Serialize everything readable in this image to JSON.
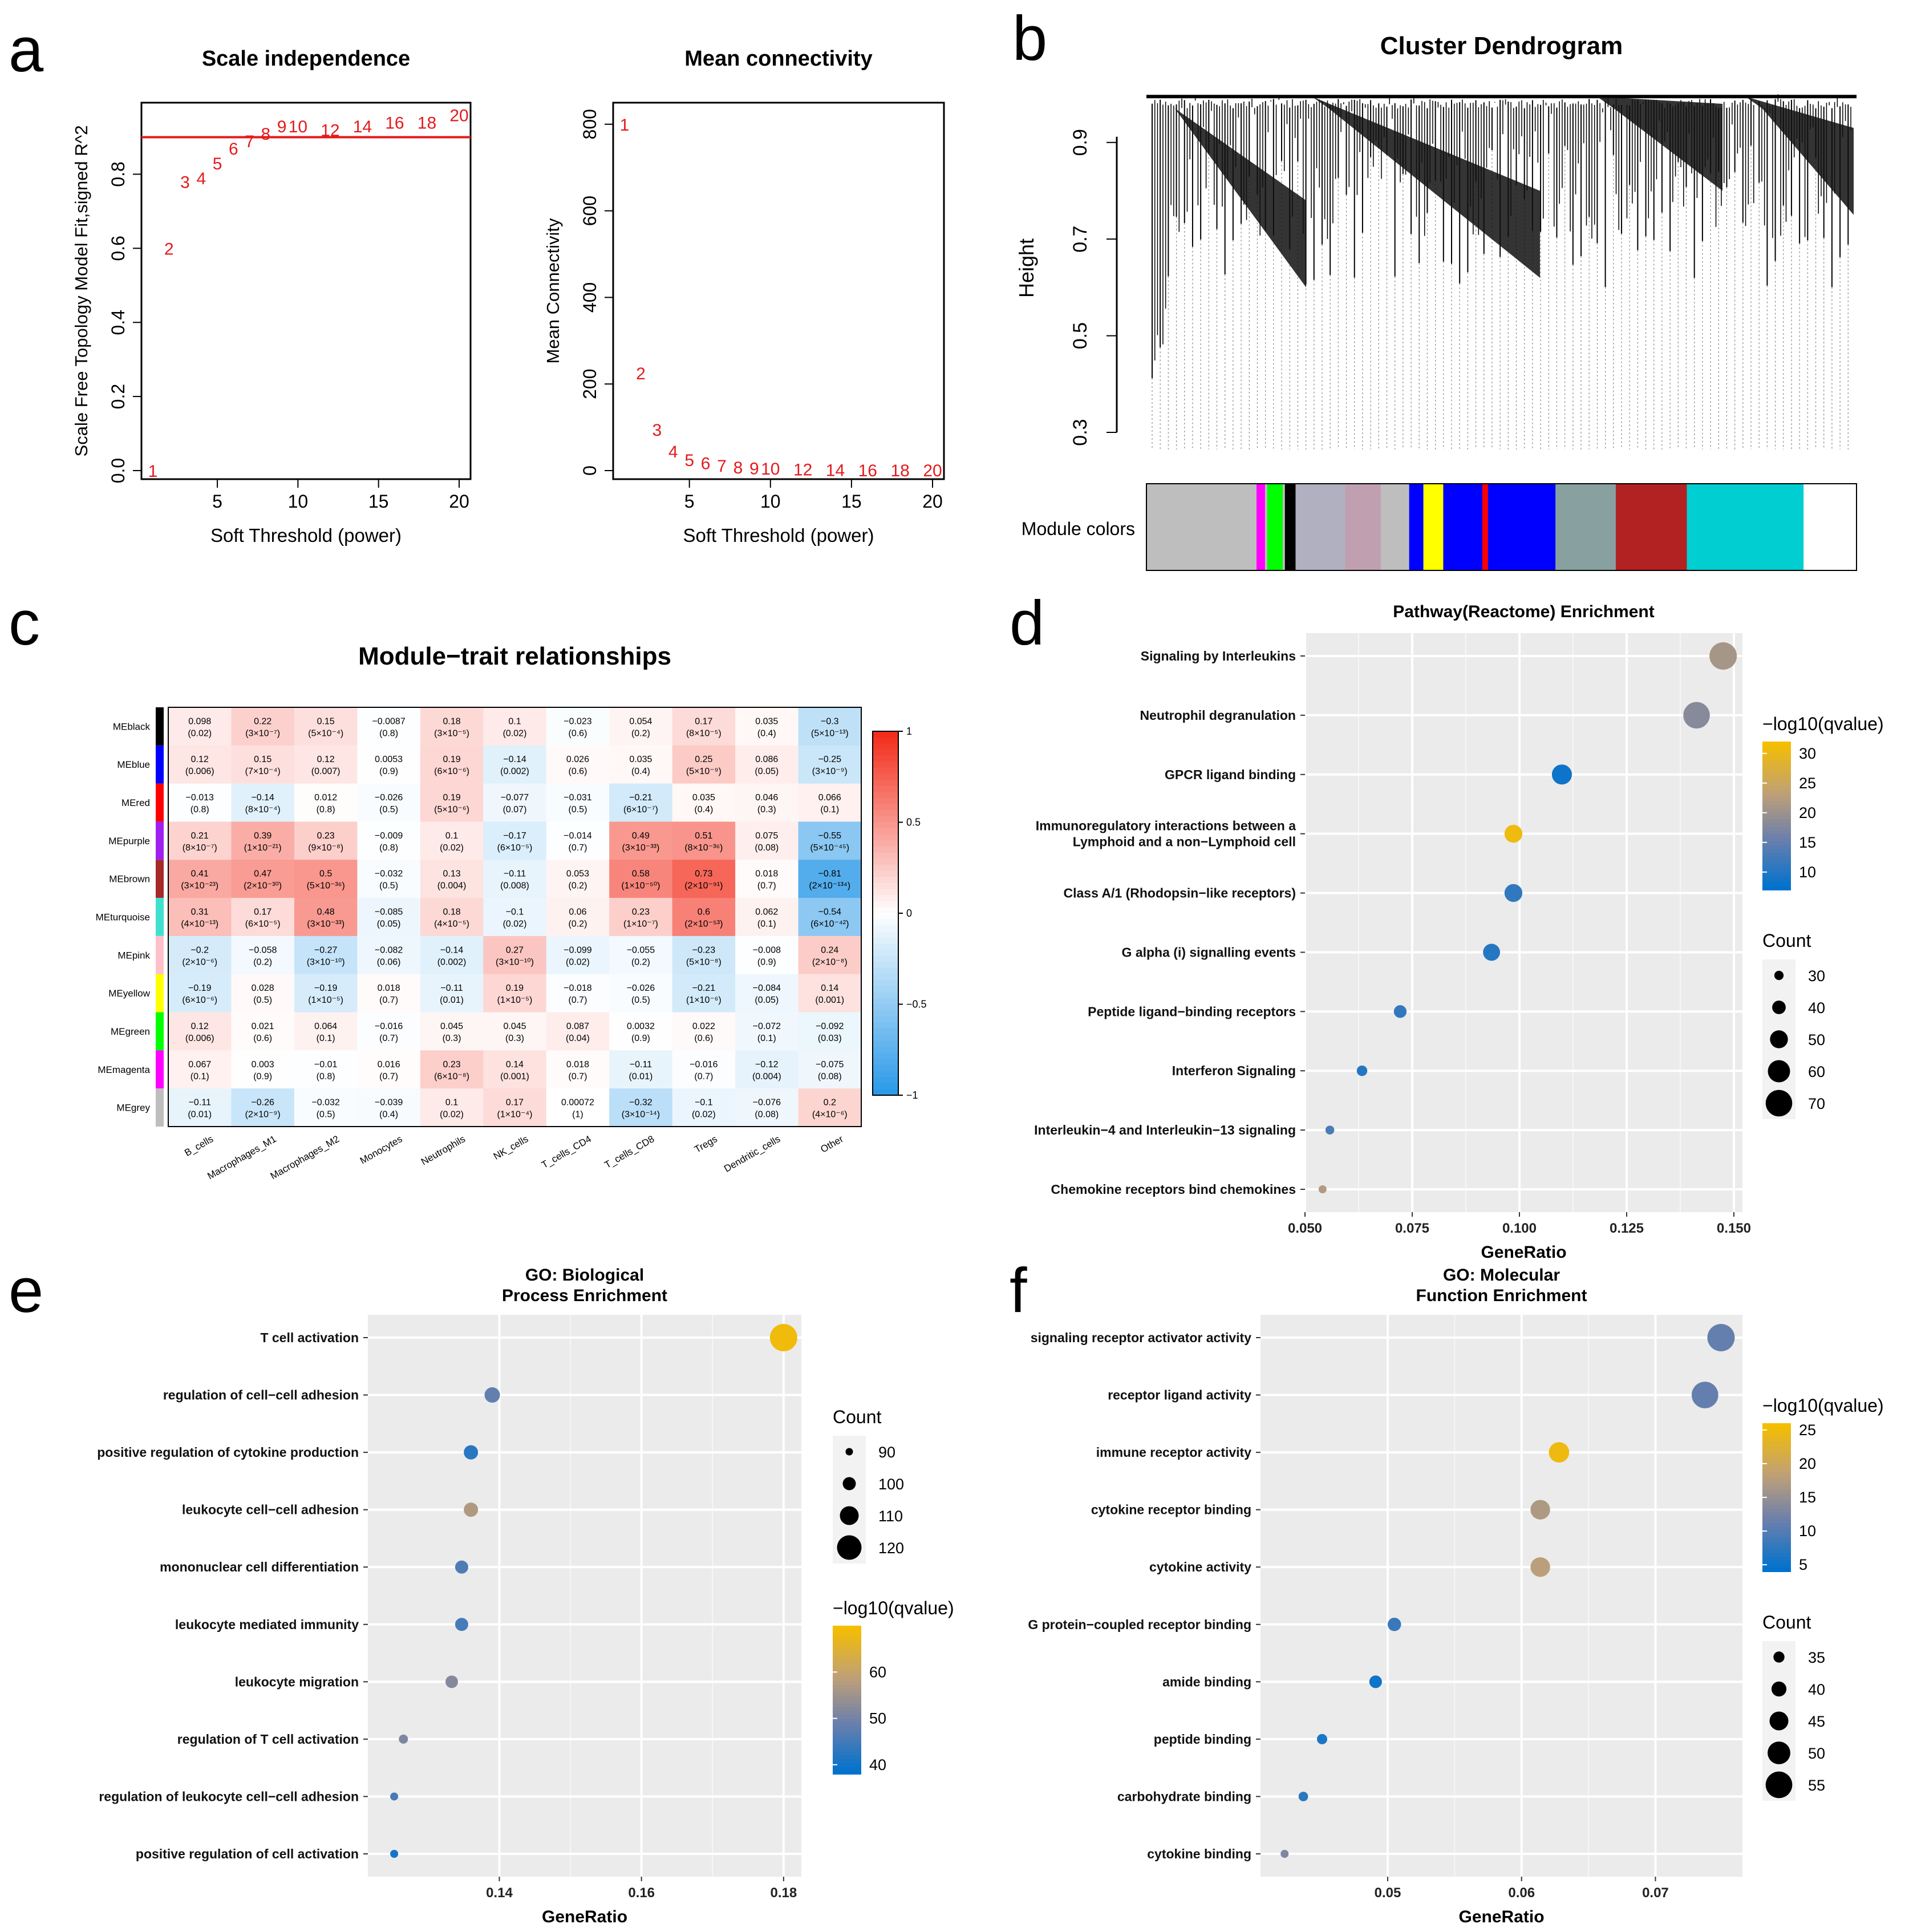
{
  "panel_labels": [
    "a",
    "b",
    "c",
    "d",
    "e",
    "f"
  ],
  "chart_data": [
    {
      "id": "scale_independence",
      "type": "scatter",
      "title": "Scale independence",
      "xlabel": "Soft Threshold (power)",
      "ylabel": "Scale Free Topology Model Fit,signed R^2",
      "xlim": [
        1,
        20
      ],
      "ylim": [
        0,
        0.97
      ],
      "x_ticks": [
        5,
        10,
        15,
        20
      ],
      "y_ticks": [
        0.0,
        0.2,
        0.4,
        0.6,
        0.8
      ],
      "cutoff_line": 0.9,
      "points": [
        {
          "label": "1",
          "x": 1,
          "y": 0.0
        },
        {
          "label": "2",
          "x": 2,
          "y": 0.6
        },
        {
          "label": "3",
          "x": 3,
          "y": 0.78
        },
        {
          "label": "4",
          "x": 4,
          "y": 0.79
        },
        {
          "label": "5",
          "x": 5,
          "y": 0.83
        },
        {
          "label": "6",
          "x": 6,
          "y": 0.87
        },
        {
          "label": "7",
          "x": 7,
          "y": 0.89
        },
        {
          "label": "8",
          "x": 8,
          "y": 0.91
        },
        {
          "label": "9",
          "x": 9,
          "y": 0.93
        },
        {
          "label": "10",
          "x": 10,
          "y": 0.93
        },
        {
          "label": "12",
          "x": 12,
          "y": 0.92
        },
        {
          "label": "14",
          "x": 14,
          "y": 0.93
        },
        {
          "label": "16",
          "x": 16,
          "y": 0.94
        },
        {
          "label": "18",
          "x": 18,
          "y": 0.94
        },
        {
          "label": "20",
          "x": 20,
          "y": 0.96
        }
      ],
      "color": "#e41a1c"
    },
    {
      "id": "mean_connectivity",
      "type": "scatter",
      "title": "Mean connectivity",
      "xlabel": "Soft Threshold (power)",
      "ylabel": "Mean Connectivity",
      "xlim": [
        1,
        20
      ],
      "ylim": [
        0,
        830
      ],
      "x_ticks": [
        5,
        10,
        15,
        20
      ],
      "y_ticks": [
        0,
        200,
        400,
        600,
        800
      ],
      "points": [
        {
          "label": "1",
          "x": 1,
          "y": 800
        },
        {
          "label": "2",
          "x": 2,
          "y": 225
        },
        {
          "label": "3",
          "x": 3,
          "y": 95
        },
        {
          "label": "4",
          "x": 4,
          "y": 45
        },
        {
          "label": "5",
          "x": 5,
          "y": 25
        },
        {
          "label": "6",
          "x": 6,
          "y": 18
        },
        {
          "label": "7",
          "x": 7,
          "y": 12
        },
        {
          "label": "8",
          "x": 8,
          "y": 8
        },
        {
          "label": "9",
          "x": 9,
          "y": 6
        },
        {
          "label": "10",
          "x": 10,
          "y": 5
        },
        {
          "label": "12",
          "x": 12,
          "y": 3
        },
        {
          "label": "14",
          "x": 14,
          "y": 2
        },
        {
          "label": "16",
          "x": 16,
          "y": 1
        },
        {
          "label": "18",
          "x": 18,
          "y": 1
        },
        {
          "label": "20",
          "x": 20,
          "y": 1
        }
      ],
      "color": "#e41a1c"
    },
    {
      "id": "cluster_dendrogram",
      "type": "dendrogram",
      "title": "Cluster Dendrogram",
      "ylabel": "Height",
      "y_ticks": [
        0.3,
        0.5,
        0.7,
        0.9
      ],
      "ylim": [
        0.28,
        1.0
      ],
      "color_bar_label": "Module colors",
      "module_color_segments": [
        {
          "color": "#bebebe",
          "width": 0.155
        },
        {
          "color": "#ff00ff",
          "width": 0.012
        },
        {
          "color": "#bebebe",
          "width": 0.003
        },
        {
          "color": "#00ff00",
          "width": 0.022
        },
        {
          "color": "#bebebe",
          "width": 0.003
        },
        {
          "color": "#000000",
          "width": 0.015
        },
        {
          "color": "#b0b0c0",
          "width": 0.07
        },
        {
          "color": "#c0a0b0",
          "width": 0.05
        },
        {
          "color": "#bebebe",
          "width": 0.04
        },
        {
          "color": "#0000ff",
          "width": 0.02
        },
        {
          "color": "#ffff00",
          "width": 0.028
        },
        {
          "color": "#0000ff",
          "width": 0.055
        },
        {
          "color": "#ff0000",
          "width": 0.008
        },
        {
          "color": "#0000ff",
          "width": 0.095
        },
        {
          "color": "#88a0a0",
          "width": 0.085
        },
        {
          "color": "#b22222",
          "width": 0.1
        },
        {
          "color": "#00ced1",
          "width": 0.164
        }
      ]
    },
    {
      "id": "module_trait",
      "type": "heatmap",
      "title": "Module−trait relationships",
      "rows": [
        "MEblack",
        "MEblue",
        "MEred",
        "MEpurple",
        "MEbrown",
        "MEturquoise",
        "MEpink",
        "MEyellow",
        "MEgreen",
        "MEmagenta",
        "MEgrey"
      ],
      "row_colors": [
        "#000000",
        "#0000ff",
        "#ff0000",
        "#a020f0",
        "#a52a2a",
        "#40e0d0",
        "#ffc0cb",
        "#ffff00",
        "#00ff00",
        "#ff00ff",
        "#bebebe"
      ],
      "columns": [
        "B_cells",
        "Macrophages_M1",
        "Macrophages_M2",
        "Monocytes",
        "Neutrophils",
        "NK_cells",
        "T_cells_CD4",
        "T_cells_CD8",
        "Tregs",
        "Dendritic_cells",
        "Other"
      ],
      "values": [
        [
          0.098,
          0.22,
          0.15,
          -0.0087,
          0.18,
          0.1,
          -0.023,
          0.054,
          0.17,
          0.035,
          -0.3
        ],
        [
          0.12,
          0.15,
          0.12,
          0.0053,
          0.19,
          -0.14,
          0.026,
          0.035,
          0.25,
          0.086,
          -0.25
        ],
        [
          -0.013,
          -0.14,
          0.012,
          -0.026,
          0.19,
          -0.077,
          -0.031,
          -0.21,
          0.035,
          0.046,
          0.066
        ],
        [
          0.21,
          0.39,
          0.23,
          -0.009,
          0.1,
          -0.17,
          -0.014,
          0.49,
          0.51,
          0.075,
          -0.55
        ],
        [
          0.41,
          0.47,
          0.5,
          -0.032,
          0.13,
          -0.11,
          0.053,
          0.58,
          0.73,
          0.018,
          -0.81
        ],
        [
          0.31,
          0.17,
          0.48,
          -0.085,
          0.18,
          -0.1,
          0.06,
          0.23,
          0.6,
          0.062,
          -0.54
        ],
        [
          -0.2,
          -0.058,
          -0.27,
          -0.082,
          -0.14,
          0.27,
          -0.099,
          -0.055,
          -0.23,
          -0.008,
          0.24
        ],
        [
          -0.19,
          0.028,
          -0.19,
          0.018,
          -0.11,
          0.19,
          -0.018,
          -0.026,
          -0.21,
          -0.084,
          0.14
        ],
        [
          0.12,
          0.021,
          0.064,
          -0.016,
          0.045,
          0.045,
          0.087,
          0.0032,
          0.022,
          -0.072,
          -0.092
        ],
        [
          0.067,
          0.003,
          -0.01,
          0.016,
          0.23,
          0.14,
          0.018,
          -0.11,
          -0.016,
          -0.12,
          -0.075
        ],
        [
          -0.11,
          -0.26,
          -0.032,
          -0.039,
          0.1,
          0.17,
          0.00072,
          -0.32,
          -0.1,
          -0.076,
          0.2
        ]
      ],
      "pvalues": [
        [
          "(0.02)",
          "(3×10⁻⁷)",
          "(5×10⁻⁴)",
          "(0.8)",
          "(3×10⁻⁵)",
          "(0.02)",
          "(0.6)",
          "(0.2)",
          "(8×10⁻⁵)",
          "(0.4)",
          "(5×10⁻¹³)"
        ],
        [
          "(0.006)",
          "(7×10⁻⁴)",
          "(0.007)",
          "(0.9)",
          "(6×10⁻⁶)",
          "(0.002)",
          "(0.6)",
          "(0.4)",
          "(5×10⁻⁹)",
          "(0.05)",
          "(3×10⁻⁹)"
        ],
        [
          "(0.8)",
          "(8×10⁻⁴)",
          "(0.8)",
          "(0.5)",
          "(5×10⁻⁶)",
          "(0.07)",
          "(0.5)",
          "(6×10⁻⁷)",
          "(0.4)",
          "(0.3)",
          "(0.1)"
        ],
        [
          "(8×10⁻⁷)",
          "(1×10⁻²¹)",
          "(9×10⁻⁸)",
          "(0.8)",
          "(0.02)",
          "(6×10⁻⁵)",
          "(0.7)",
          "(3×10⁻³³)",
          "(8×10⁻³⁶)",
          "(0.08)",
          "(5×10⁻⁴⁵)"
        ],
        [
          "(3×10⁻²³)",
          "(2×10⁻³⁰)",
          "(5×10⁻³⁶)",
          "(0.5)",
          "(0.004)",
          "(0.008)",
          "(0.2)",
          "(1×10⁻⁵⁰)",
          "(2×10⁻⁹¹)",
          "(0.7)",
          "(2×10⁻¹³⁴)"
        ],
        [
          "(4×10⁻¹³)",
          "(6×10⁻⁵)",
          "(3×10⁻³³)",
          "(0.05)",
          "(4×10⁻⁵)",
          "(0.02)",
          "(0.2)",
          "(1×10⁻⁷)",
          "(2×10⁻⁵³)",
          "(0.1)",
          "(6×10⁻⁴²)"
        ],
        [
          "(2×10⁻⁶)",
          "(0.2)",
          "(3×10⁻¹⁰)",
          "(0.06)",
          "(0.002)",
          "(3×10⁻¹⁰)",
          "(0.02)",
          "(0.2)",
          "(5×10⁻⁸)",
          "(0.9)",
          "(2×10⁻⁸)"
        ],
        [
          "(6×10⁻⁶)",
          "(0.5)",
          "(1×10⁻⁵)",
          "(0.7)",
          "(0.01)",
          "(1×10⁻⁵)",
          "(0.7)",
          "(0.5)",
          "(1×10⁻⁶)",
          "(0.05)",
          "(0.001)"
        ],
        [
          "(0.006)",
          "(0.6)",
          "(0.1)",
          "(0.7)",
          "(0.3)",
          "(0.3)",
          "(0.04)",
          "(0.9)",
          "(0.6)",
          "(0.1)",
          "(0.03)"
        ],
        [
          "(0.1)",
          "(0.9)",
          "(0.8)",
          "(0.7)",
          "(6×10⁻⁸)",
          "(0.001)",
          "(0.7)",
          "(0.01)",
          "(0.7)",
          "(0.004)",
          "(0.08)"
        ],
        [
          "(0.01)",
          "(2×10⁻⁹)",
          "(0.5)",
          "(0.4)",
          "(0.02)",
          "(1×10⁻⁴)",
          "(1)",
          "(3×10⁻¹⁴)",
          "(0.02)",
          "(0.08)",
          "(4×10⁻⁶)"
        ]
      ],
      "colorbar_ticks": [
        "1",
        "0.5",
        "0",
        "−0.5",
        "−1"
      ],
      "colorscale": [
        "#2b9ae8",
        "#ffffff",
        "#f22d1b"
      ]
    },
    {
      "id": "reactome",
      "type": "scatter",
      "subtype": "dotplot",
      "title": "Pathway(Reactome) Enrichment",
      "xlabel": "GeneRatio",
      "xlim": [
        0.05,
        0.152
      ],
      "x_ticks": [
        "0.050",
        "0.075",
        "0.100",
        "0.125",
        "0.150"
      ],
      "x_tick_values": [
        0.05,
        0.075,
        0.1,
        0.125,
        0.15
      ],
      "categories": [
        "Signaling by Interleukins",
        "Neutrophil degranulation",
        "GPCR ligand binding",
        "Immunoregulatory interactions between a|Lymphoid and a non−Lymphoid cell",
        "Class A/1 (Rhodopsin−like receptors)",
        "G alpha (i) signalling events",
        "Peptide ligand−binding receptors",
        "Interferon Signaling",
        "Interleukin−4 and Interleukin−13 signaling",
        "Chemokine receptors bind chemokines"
      ],
      "x": [
        0.1475,
        0.1413,
        0.1099,
        0.0986,
        0.0986,
        0.0935,
        0.0722,
        0.0633,
        0.0558,
        0.0541
      ],
      "count": [
        72,
        70,
        55,
        50,
        50,
        48,
        38,
        33,
        29,
        27
      ],
      "qvalue_log": [
        21,
        18,
        8,
        31,
        11,
        10,
        11,
        10,
        13,
        22
      ],
      "color_legend": {
        "title": "−log10(qvalue)",
        "ticks": [
          10,
          15,
          20,
          25,
          30
        ],
        "min": 7,
        "max": 32
      },
      "size_legend": {
        "title": "Count",
        "values": [
          30,
          40,
          50,
          60,
          70
        ]
      }
    },
    {
      "id": "go_bp",
      "type": "scatter",
      "subtype": "dotplot",
      "title": "GO: Biological|Process Enrichment",
      "xlabel": "GeneRatio",
      "xlim": [
        0.1215,
        0.1825
      ],
      "x_ticks": [
        "0.14",
        "0.16",
        "0.18"
      ],
      "x_tick_values": [
        0.14,
        0.16,
        0.18
      ],
      "categories": [
        "T cell activation",
        "regulation of cell−cell adhesion",
        "positive regulation of cytokine production",
        "leukocyte cell−cell adhesion",
        "mononuclear cell differentiation",
        "leukocyte mediated immunity",
        "leukocyte migration",
        "regulation of T cell activation",
        "regulation of leukocyte cell−cell adhesion",
        "positive regulation of cell activation"
      ],
      "x": [
        0.18,
        0.139,
        0.136,
        0.136,
        0.1347,
        0.1347,
        0.1333,
        0.1265,
        0.1252,
        0.1252
      ],
      "count": [
        125,
        104,
        102,
        102,
        100,
        100,
        99,
        93,
        91,
        91
      ],
      "qvalue_log": [
        69,
        48,
        42,
        57,
        46,
        45,
        52,
        51,
        45,
        40
      ],
      "color_legend": {
        "title": "−log10(qvalue)",
        "ticks": [
          40,
          50,
          60
        ],
        "min": 38,
        "max": 70
      },
      "size_legend": {
        "title": "Count",
        "values": [
          90,
          100,
          110,
          120
        ]
      }
    },
    {
      "id": "go_mf",
      "type": "scatter",
      "subtype": "dotplot",
      "title": "GO: Molecular|Function Enrichment",
      "xlabel": "GeneRatio",
      "xlim": [
        0.0405,
        0.0765
      ],
      "x_ticks": [
        "0.05",
        "0.06",
        "0.07"
      ],
      "x_tick_values": [
        0.05,
        0.06,
        0.07
      ],
      "categories": [
        "signaling receptor activator activity",
        "receptor ligand activity",
        "immune receptor activity",
        "cytokine receptor binding",
        "cytokine activity",
        "G protein−coupled receptor binding",
        "amide binding",
        "peptide binding",
        "carbohydrate binding",
        "cytokine binding"
      ],
      "x": [
        0.0749,
        0.0737,
        0.0628,
        0.0614,
        0.0614,
        0.0505,
        0.0491,
        0.0451,
        0.0437,
        0.0423
      ],
      "count": [
        56,
        55,
        47,
        46,
        46,
        38,
        37,
        34,
        33,
        31
      ],
      "qvalue_log": [
        11,
        11,
        25,
        17,
        18,
        8,
        5,
        6,
        7,
        13
      ],
      "color_legend": {
        "title": "−log10(qvalue)",
        "ticks": [
          5,
          10,
          15,
          20,
          25
        ],
        "min": 4,
        "max": 26
      },
      "size_legend": {
        "title": "Count",
        "values": [
          35,
          40,
          45,
          50,
          55
        ]
      }
    }
  ]
}
